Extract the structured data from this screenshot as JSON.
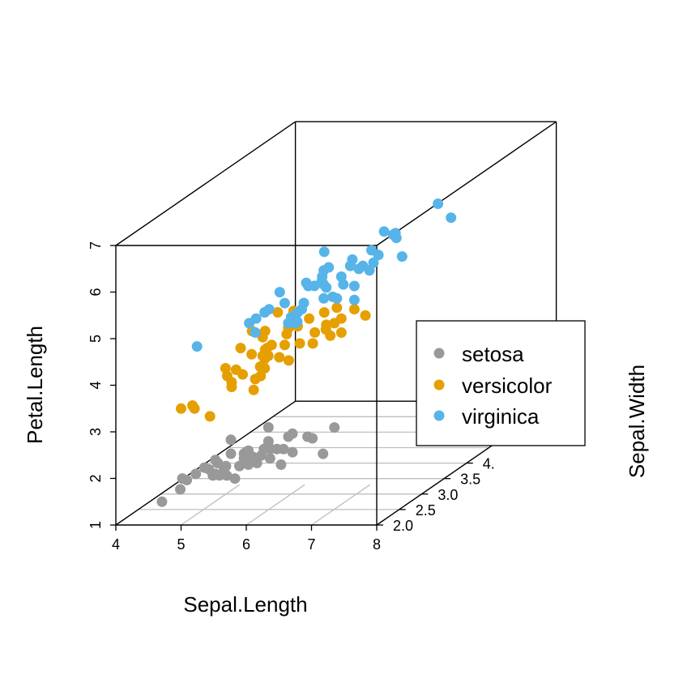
{
  "chart_data": {
    "type": "scatter",
    "subtype": "3d-scatter",
    "title": "",
    "xlabel": "Sepal.Length",
    "ylabel": "Sepal.Width",
    "zlabel": "Petal.Length",
    "xlim": [
      4,
      8
    ],
    "ylim": [
      2.0,
      4.5
    ],
    "zlim": [
      1,
      7
    ],
    "xticks": [
      "4",
      "5",
      "6",
      "7",
      "8"
    ],
    "yticks": [
      "2.0",
      "2.5",
      "3.0",
      "3.5",
      "4."
    ],
    "zticks": [
      "1",
      "2",
      "3",
      "4",
      "5",
      "6",
      "7"
    ],
    "grid": "xy-plane",
    "legend_position": "right",
    "series": [
      {
        "name": "setosa",
        "color": "#999999",
        "points": [
          [
            5.1,
            3.5,
            1.4
          ],
          [
            4.9,
            3.0,
            1.4
          ],
          [
            4.7,
            3.2,
            1.3
          ],
          [
            4.6,
            3.1,
            1.5
          ],
          [
            5.0,
            3.6,
            1.4
          ],
          [
            5.4,
            3.9,
            1.7
          ],
          [
            4.6,
            3.4,
            1.4
          ],
          [
            5.0,
            3.4,
            1.5
          ],
          [
            4.4,
            2.9,
            1.4
          ],
          [
            4.9,
            3.1,
            1.5
          ],
          [
            5.4,
            3.7,
            1.5
          ],
          [
            4.8,
            3.4,
            1.6
          ],
          [
            4.8,
            3.0,
            1.4
          ],
          [
            4.3,
            3.0,
            1.1
          ],
          [
            5.8,
            4.0,
            1.2
          ],
          [
            5.7,
            4.4,
            1.5
          ],
          [
            5.4,
            3.9,
            1.3
          ],
          [
            5.1,
            3.5,
            1.4
          ],
          [
            5.7,
            3.8,
            1.7
          ],
          [
            5.1,
            3.8,
            1.5
          ],
          [
            5.4,
            3.4,
            1.7
          ],
          [
            5.1,
            3.7,
            1.5
          ],
          [
            4.6,
            3.6,
            1.0
          ],
          [
            5.1,
            3.3,
            1.7
          ],
          [
            4.8,
            3.4,
            1.9
          ],
          [
            5.0,
            3.0,
            1.6
          ],
          [
            5.0,
            3.4,
            1.6
          ],
          [
            5.2,
            3.5,
            1.5
          ],
          [
            5.2,
            3.4,
            1.4
          ],
          [
            4.7,
            3.2,
            1.6
          ],
          [
            4.8,
            3.1,
            1.6
          ],
          [
            5.4,
            3.4,
            1.5
          ],
          [
            5.2,
            4.1,
            1.5
          ],
          [
            5.5,
            4.2,
            1.4
          ],
          [
            4.9,
            3.1,
            1.5
          ],
          [
            5.0,
            3.2,
            1.2
          ],
          [
            5.5,
            3.5,
            1.3
          ],
          [
            4.9,
            3.6,
            1.4
          ],
          [
            4.4,
            3.0,
            1.3
          ],
          [
            5.1,
            3.4,
            1.5
          ],
          [
            5.0,
            3.5,
            1.3
          ],
          [
            4.5,
            2.3,
            1.3
          ],
          [
            4.4,
            3.2,
            1.3
          ],
          [
            5.0,
            3.5,
            1.6
          ],
          [
            5.1,
            3.8,
            1.9
          ],
          [
            4.8,
            3.0,
            1.4
          ],
          [
            5.1,
            3.8,
            1.6
          ],
          [
            4.6,
            3.2,
            1.4
          ],
          [
            5.3,
            3.7,
            1.5
          ],
          [
            5.0,
            3.3,
            1.4
          ]
        ]
      },
      {
        "name": "versicolor",
        "color": "#E69F00",
        "points": [
          [
            7.0,
            3.2,
            4.7
          ],
          [
            6.4,
            3.2,
            4.5
          ],
          [
            6.9,
            3.1,
            4.9
          ],
          [
            5.5,
            2.3,
            4.0
          ],
          [
            6.5,
            2.8,
            4.6
          ],
          [
            5.7,
            2.8,
            4.5
          ],
          [
            6.3,
            3.3,
            4.7
          ],
          [
            4.9,
            2.4,
            3.3
          ],
          [
            6.6,
            2.9,
            4.6
          ],
          [
            5.2,
            2.7,
            3.9
          ],
          [
            5.0,
            2.0,
            3.5
          ],
          [
            5.9,
            3.0,
            4.2
          ],
          [
            6.0,
            2.2,
            4.0
          ],
          [
            6.1,
            2.9,
            4.7
          ],
          [
            5.6,
            2.9,
            3.6
          ],
          [
            6.7,
            3.1,
            4.4
          ],
          [
            5.6,
            3.0,
            4.5
          ],
          [
            5.8,
            2.7,
            4.1
          ],
          [
            6.2,
            2.2,
            4.5
          ],
          [
            5.6,
            2.5,
            3.9
          ],
          [
            5.9,
            3.2,
            4.8
          ],
          [
            6.1,
            2.8,
            4.0
          ],
          [
            6.3,
            2.5,
            4.9
          ],
          [
            6.1,
            2.8,
            4.7
          ],
          [
            6.4,
            2.9,
            4.3
          ],
          [
            6.6,
            3.0,
            4.4
          ],
          [
            6.8,
            2.8,
            4.8
          ],
          [
            6.7,
            3.0,
            5.0
          ],
          [
            6.0,
            2.9,
            4.5
          ],
          [
            5.7,
            2.6,
            3.5
          ],
          [
            5.5,
            2.4,
            3.8
          ],
          [
            5.5,
            2.4,
            3.7
          ],
          [
            5.8,
            2.7,
            3.9
          ],
          [
            6.0,
            2.7,
            5.1
          ],
          [
            5.4,
            3.0,
            4.5
          ],
          [
            6.0,
            3.4,
            4.5
          ],
          [
            6.7,
            3.1,
            4.7
          ],
          [
            6.3,
            2.3,
            4.4
          ],
          [
            5.6,
            3.0,
            4.1
          ],
          [
            5.5,
            2.5,
            4.0
          ],
          [
            5.5,
            2.6,
            4.4
          ],
          [
            6.1,
            3.0,
            4.6
          ],
          [
            5.8,
            2.6,
            4.0
          ],
          [
            5.0,
            2.3,
            3.3
          ],
          [
            5.6,
            2.7,
            4.2
          ],
          [
            5.7,
            3.0,
            4.2
          ],
          [
            5.7,
            2.9,
            4.2
          ],
          [
            6.2,
            2.9,
            4.3
          ],
          [
            5.1,
            2.5,
            3.0
          ],
          [
            5.7,
            2.8,
            4.1
          ]
        ]
      },
      {
        "name": "virginica",
        "color": "#56B4E9",
        "points": [
          [
            6.3,
            3.3,
            6.0
          ],
          [
            5.8,
            2.7,
            5.1
          ],
          [
            7.1,
            3.0,
            5.9
          ],
          [
            6.3,
            2.9,
            5.6
          ],
          [
            6.5,
            3.0,
            5.8
          ],
          [
            7.6,
            3.0,
            6.6
          ],
          [
            4.9,
            2.5,
            4.5
          ],
          [
            7.3,
            2.9,
            6.3
          ],
          [
            6.7,
            2.5,
            5.8
          ],
          [
            7.2,
            3.6,
            6.1
          ],
          [
            6.5,
            3.2,
            5.1
          ],
          [
            6.4,
            2.7,
            5.3
          ],
          [
            6.8,
            3.0,
            5.5
          ],
          [
            5.7,
            2.5,
            5.0
          ],
          [
            5.8,
            2.8,
            5.1
          ],
          [
            6.4,
            3.2,
            5.3
          ],
          [
            6.5,
            3.0,
            5.5
          ],
          [
            7.7,
            3.8,
            6.7
          ],
          [
            7.7,
            2.6,
            6.9
          ],
          [
            6.0,
            2.2,
            5.0
          ],
          [
            6.9,
            3.2,
            5.7
          ],
          [
            5.6,
            2.8,
            4.9
          ],
          [
            7.7,
            2.8,
            6.7
          ],
          [
            6.3,
            2.7,
            4.9
          ],
          [
            6.7,
            3.3,
            5.7
          ],
          [
            7.2,
            3.2,
            6.0
          ],
          [
            6.2,
            2.8,
            4.8
          ],
          [
            6.1,
            3.0,
            4.9
          ],
          [
            6.4,
            2.8,
            5.6
          ],
          [
            7.2,
            3.0,
            5.8
          ],
          [
            7.4,
            2.8,
            6.1
          ],
          [
            7.9,
            3.8,
            6.4
          ],
          [
            6.4,
            2.8,
            5.6
          ],
          [
            6.3,
            2.8,
            5.1
          ],
          [
            6.1,
            2.6,
            5.6
          ],
          [
            7.7,
            3.0,
            6.1
          ],
          [
            6.3,
            3.4,
            5.6
          ],
          [
            6.4,
            3.1,
            5.5
          ],
          [
            6.0,
            3.0,
            4.8
          ],
          [
            6.9,
            3.1,
            5.4
          ],
          [
            6.7,
            3.1,
            5.6
          ],
          [
            6.9,
            3.1,
            5.1
          ],
          [
            5.8,
            2.7,
            5.1
          ],
          [
            6.8,
            3.2,
            5.9
          ],
          [
            6.7,
            3.3,
            5.7
          ],
          [
            6.7,
            3.0,
            5.2
          ],
          [
            6.3,
            2.5,
            5.0
          ],
          [
            6.5,
            3.0,
            5.2
          ],
          [
            6.2,
            3.4,
            5.4
          ],
          [
            5.9,
            3.0,
            5.1
          ]
        ]
      }
    ]
  }
}
